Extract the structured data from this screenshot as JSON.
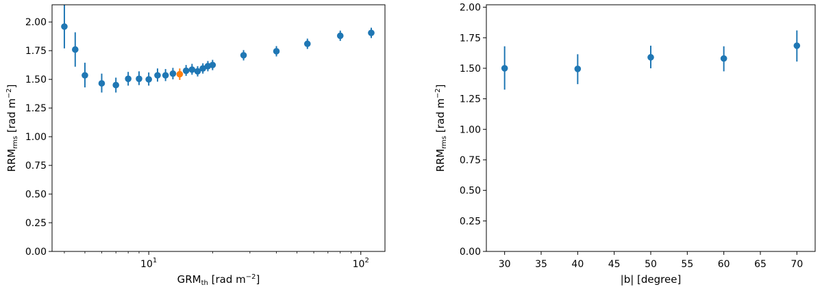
{
  "chart_data": [
    {
      "type": "scatter",
      "xscale": "log",
      "xlim": [
        3.5,
        130
      ],
      "ylim": [
        0,
        2.15
      ],
      "xlabel": {
        "main": "GRM",
        "sub": "th",
        "rest": " [rad m",
        "sup": "−2",
        "end": "]"
      },
      "ylabel": {
        "main": "RRM",
        "sub": "rms",
        "rest": " [rad m",
        "sup": "−2",
        "end": "]"
      },
      "xticks": [
        {
          "value": 10,
          "base": "10",
          "exp": "1"
        },
        {
          "value": 100,
          "base": "10",
          "exp": "2"
        }
      ],
      "yticks": [
        "0.00",
        "0.25",
        "0.50",
        "0.75",
        "1.00",
        "1.25",
        "1.50",
        "1.75",
        "2.00"
      ],
      "grid": false,
      "colors": {
        "default": "#1f77b4",
        "highlight": "#ff7f0e"
      },
      "series": [
        {
          "points": [
            {
              "x": 4.0,
              "y": 1.96,
              "lo": 1.77,
              "hi": 2.15
            },
            {
              "x": 4.5,
              "y": 1.76,
              "lo": 1.61,
              "hi": 1.91
            },
            {
              "x": 5.0,
              "y": 1.535,
              "lo": 1.43,
              "hi": 1.645
            },
            {
              "x": 6.0,
              "y": 1.465,
              "lo": 1.385,
              "hi": 1.55
            },
            {
              "x": 7.0,
              "y": 1.45,
              "lo": 1.385,
              "hi": 1.515
            },
            {
              "x": 8.0,
              "y": 1.505,
              "lo": 1.445,
              "hi": 1.565
            },
            {
              "x": 9.0,
              "y": 1.505,
              "lo": 1.45,
              "hi": 1.57
            },
            {
              "x": 10.0,
              "y": 1.5,
              "lo": 1.445,
              "hi": 1.56
            },
            {
              "x": 11.0,
              "y": 1.535,
              "lo": 1.48,
              "hi": 1.595
            },
            {
              "x": 12.0,
              "y": 1.535,
              "lo": 1.485,
              "hi": 1.59
            },
            {
              "x": 13.0,
              "y": 1.55,
              "lo": 1.5,
              "hi": 1.6
            },
            {
              "x": 14.0,
              "y": 1.545,
              "lo": 1.495,
              "hi": 1.595,
              "highlight": true
            },
            {
              "x": 15.0,
              "y": 1.575,
              "lo": 1.53,
              "hi": 1.625
            },
            {
              "x": 16.0,
              "y": 1.585,
              "lo": 1.54,
              "hi": 1.635
            },
            {
              "x": 17.0,
              "y": 1.57,
              "lo": 1.525,
              "hi": 1.615
            },
            {
              "x": 18.0,
              "y": 1.595,
              "lo": 1.55,
              "hi": 1.64
            },
            {
              "x": 19.0,
              "y": 1.615,
              "lo": 1.57,
              "hi": 1.66
            },
            {
              "x": 20.0,
              "y": 1.625,
              "lo": 1.58,
              "hi": 1.67
            },
            {
              "x": 28.0,
              "y": 1.71,
              "lo": 1.665,
              "hi": 1.755
            },
            {
              "x": 40.0,
              "y": 1.745,
              "lo": 1.7,
              "hi": 1.79
            },
            {
              "x": 56.0,
              "y": 1.81,
              "lo": 1.765,
              "hi": 1.855
            },
            {
              "x": 80.0,
              "y": 1.88,
              "lo": 1.835,
              "hi": 1.925
            },
            {
              "x": 112.0,
              "y": 1.905,
              "lo": 1.86,
              "hi": 1.95
            }
          ]
        }
      ]
    },
    {
      "type": "scatter",
      "xscale": "linear",
      "xlim": [
        27.5,
        72.5
      ],
      "ylim": [
        0,
        2.02
      ],
      "xlabel": {
        "main": "|b| [degree]"
      },
      "ylabel": {
        "main": "RRM",
        "sub": "rms",
        "rest": " [rad m",
        "sup": "−2",
        "end": "]"
      },
      "xticks": [
        {
          "value": 30,
          "label": "30"
        },
        {
          "value": 35,
          "label": "35"
        },
        {
          "value": 40,
          "label": "40"
        },
        {
          "value": 45,
          "label": "45"
        },
        {
          "value": 50,
          "label": "50"
        },
        {
          "value": 55,
          "label": "55"
        },
        {
          "value": 60,
          "label": "60"
        },
        {
          "value": 65,
          "label": "65"
        },
        {
          "value": 70,
          "label": "70"
        }
      ],
      "yticks": [
        "0.00",
        "0.25",
        "0.50",
        "0.75",
        "1.00",
        "1.25",
        "1.50",
        "1.75",
        "2.00"
      ],
      "grid": false,
      "colors": {
        "default": "#1f77b4"
      },
      "series": [
        {
          "points": [
            {
              "x": 30,
              "y": 1.5,
              "lo": 1.325,
              "hi": 1.68
            },
            {
              "x": 40,
              "y": 1.495,
              "lo": 1.37,
              "hi": 1.615
            },
            {
              "x": 50,
              "y": 1.59,
              "lo": 1.5,
              "hi": 1.685
            },
            {
              "x": 60,
              "y": 1.58,
              "lo": 1.475,
              "hi": 1.68
            },
            {
              "x": 70,
              "y": 1.685,
              "lo": 1.555,
              "hi": 1.81
            }
          ]
        }
      ]
    }
  ]
}
